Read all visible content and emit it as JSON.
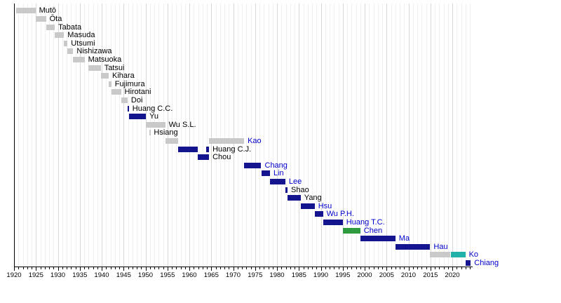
{
  "chart_data": {
    "type": "gantt",
    "title": "",
    "x_axis": {
      "start_year": 1920,
      "end_year": 2024.2,
      "major_tick_interval": 5,
      "minor_tick_interval": 1,
      "tick_labels": [
        "1920",
        "1925",
        "1930",
        "1935",
        "1940",
        "1945",
        "1950",
        "1955",
        "1960",
        "1965",
        "1970",
        "1975",
        "1980",
        "1985",
        "1990",
        "1995",
        "2000",
        "2005",
        "2010",
        "2015",
        "2020"
      ],
      "grid": "on"
    },
    "palette": {
      "gray": "#c9c9c9",
      "navy": "#14148f",
      "green": "#2e9b3f",
      "teal": "#20b2aa"
    },
    "label_colors": {
      "black": "#000000",
      "blue": "#0000cc"
    },
    "rows": [
      {
        "label": "Mutō",
        "label_color": "black",
        "bars": [
          {
            "start": 1920.4,
            "end": 1924.9,
            "color": "gray"
          }
        ]
      },
      {
        "label": "Ōta",
        "label_color": "black",
        "bars": [
          {
            "start": 1924.9,
            "end": 1927.3,
            "color": "gray"
          }
        ]
      },
      {
        "label": "Tabata",
        "label_color": "black",
        "bars": [
          {
            "start": 1927.3,
            "end": 1929.3,
            "color": "gray"
          }
        ]
      },
      {
        "label": "Masuda",
        "label_color": "black",
        "bars": [
          {
            "start": 1929.3,
            "end": 1931.4,
            "color": "gray"
          }
        ]
      },
      {
        "label": "Utsumi",
        "label_color": "black",
        "bars": [
          {
            "start": 1931.4,
            "end": 1932.2,
            "color": "gray"
          }
        ]
      },
      {
        "label": "Nishizawa",
        "label_color": "black",
        "bars": [
          {
            "start": 1932.2,
            "end": 1933.5,
            "color": "gray"
          }
        ]
      },
      {
        "label": "Matsuoka",
        "label_color": "black",
        "bars": [
          {
            "start": 1933.5,
            "end": 1936.1,
            "color": "gray"
          }
        ]
      },
      {
        "label": "Tatsui",
        "label_color": "black",
        "bars": [
          {
            "start": 1936.9,
            "end": 1939.8,
            "color": "gray"
          }
        ]
      },
      {
        "label": "Kihara",
        "label_color": "black",
        "bars": [
          {
            "start": 1939.8,
            "end": 1941.6,
            "color": "gray"
          }
        ]
      },
      {
        "label": "Fujimura",
        "label_color": "black",
        "bars": [
          {
            "start": 1941.6,
            "end": 1942.2,
            "color": "gray"
          }
        ]
      },
      {
        "label": "Hirotani",
        "label_color": "black",
        "bars": [
          {
            "start": 1942.2,
            "end": 1944.4,
            "color": "gray"
          }
        ]
      },
      {
        "label": "Doi",
        "label_color": "black",
        "bars": [
          {
            "start": 1944.4,
            "end": 1945.9,
            "color": "gray"
          }
        ]
      },
      {
        "label": "Huang C.C.",
        "label_color": "black",
        "bars": [
          {
            "start": 1945.9,
            "end": 1946.2,
            "color": "navy"
          }
        ]
      },
      {
        "label": "Yu",
        "label_color": "black",
        "bars": [
          {
            "start": 1946.2,
            "end": 1950.1,
            "color": "navy"
          }
        ]
      },
      {
        "label": "Wu S.L.",
        "label_color": "black",
        "bars": [
          {
            "start": 1950.1,
            "end": 1954.5,
            "color": "gray"
          }
        ]
      },
      {
        "label": "Hsiang",
        "label_color": "black",
        "bars": [
          {
            "start": 1950.8,
            "end": 1951.1,
            "color": "gray"
          }
        ]
      },
      {
        "label": "Kao",
        "label_color": "blue",
        "bars": [
          {
            "start": 1954.5,
            "end": 1957.4,
            "color": "gray"
          },
          {
            "start": 1964.5,
            "end": 1972.5,
            "color": "gray"
          }
        ]
      },
      {
        "label": "Huang C.J.",
        "label_color": "black",
        "bars": [
          {
            "start": 1957.4,
            "end": 1961.9,
            "color": "navy"
          },
          {
            "start": 1963.9,
            "end": 1964.5,
            "color": "navy"
          }
        ]
      },
      {
        "label": "Chou",
        "label_color": "black",
        "bars": [
          {
            "start": 1961.9,
            "end": 1964.5,
            "color": "navy"
          }
        ]
      },
      {
        "label": "Chang",
        "label_color": "blue",
        "bars": [
          {
            "start": 1972.5,
            "end": 1976.4,
            "color": "navy"
          }
        ]
      },
      {
        "label": "Lin",
        "label_color": "blue",
        "bars": [
          {
            "start": 1976.4,
            "end": 1978.4,
            "color": "navy"
          }
        ]
      },
      {
        "label": "Lee",
        "label_color": "blue",
        "bars": [
          {
            "start": 1978.4,
            "end": 1981.9,
            "color": "navy"
          }
        ]
      },
      {
        "label": "Shao",
        "label_color": "black",
        "bars": [
          {
            "start": 1981.9,
            "end": 1982.4,
            "color": "navy"
          }
        ]
      },
      {
        "label": "Yang",
        "label_color": "black",
        "bars": [
          {
            "start": 1982.4,
            "end": 1985.4,
            "color": "navy"
          }
        ]
      },
      {
        "label": "Hsu",
        "label_color": "blue",
        "bars": [
          {
            "start": 1985.4,
            "end": 1988.6,
            "color": "navy"
          }
        ]
      },
      {
        "label": "Wu P.H.",
        "label_color": "blue",
        "bars": [
          {
            "start": 1988.6,
            "end": 1990.5,
            "color": "navy"
          }
        ]
      },
      {
        "label": "Huang T.C.",
        "label_color": "blue",
        "bars": [
          {
            "start": 1990.5,
            "end": 1995.0,
            "color": "navy"
          }
        ]
      },
      {
        "label": "Chen",
        "label_color": "blue",
        "bars": [
          {
            "start": 1995.0,
            "end": 1999.0,
            "color": "green"
          }
        ]
      },
      {
        "label": "Ma",
        "label_color": "blue",
        "bars": [
          {
            "start": 1999.0,
            "end": 2007.0,
            "color": "navy"
          }
        ]
      },
      {
        "label": "Hau",
        "label_color": "blue",
        "bars": [
          {
            "start": 2007.0,
            "end": 2014.95,
            "color": "navy"
          }
        ]
      },
      {
        "label": "Ko",
        "label_color": "blue",
        "bars": [
          {
            "start": 2014.95,
            "end": 2019.6,
            "color": "gray"
          },
          {
            "start": 2019.6,
            "end": 2022.98,
            "color": "teal"
          }
        ]
      },
      {
        "label": "Chiang",
        "label_color": "blue",
        "bars": [
          {
            "start": 2022.98,
            "end": 2024.2,
            "color": "navy"
          }
        ]
      }
    ]
  }
}
